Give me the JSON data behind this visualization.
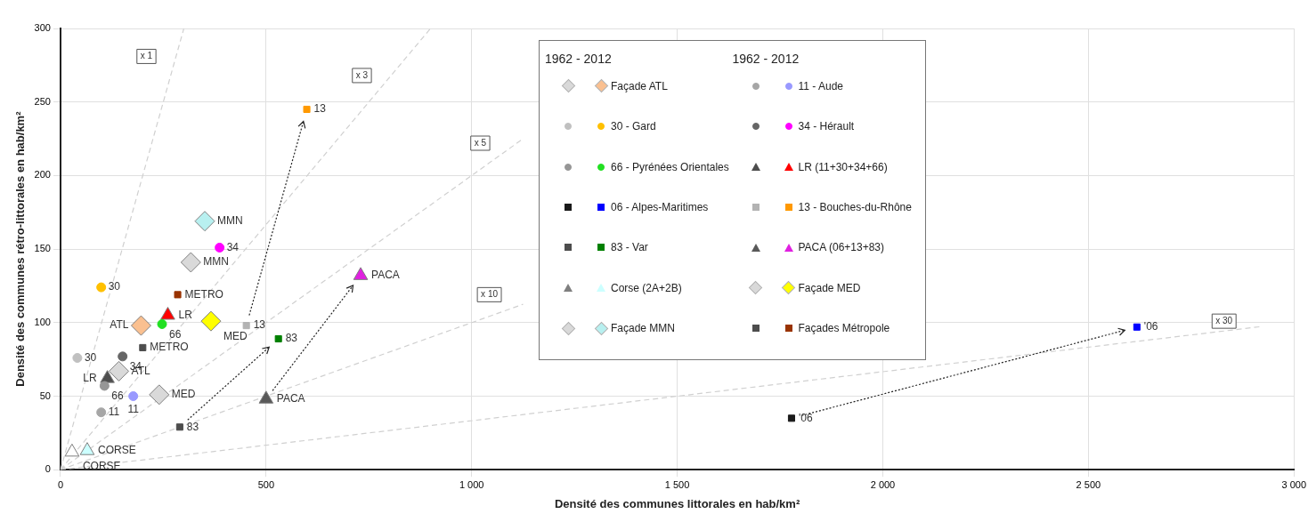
{
  "chart_data": {
    "type": "scatter",
    "xlabel": "Densité des communes littorales en hab/km²",
    "ylabel": "Densité des communes rétro-littorales en hab/km²",
    "legend_title": "1962 - 2012",
    "legend": "top",
    "grid": true,
    "xlim": [
      0,
      3000
    ],
    "xticks": [
      0,
      500,
      {
        "value": 1000,
        "label": "1 000"
      },
      {
        "value": 1500,
        "label": "1 500"
      },
      {
        "value": 2000,
        "label": "2 000"
      },
      {
        "value": 2500,
        "label": "2 500"
      },
      {
        "value": 3000,
        "label": "3 000"
      }
    ],
    "ylim": [
      0,
      300
    ],
    "yticks": [
      0,
      50,
      100,
      150,
      200,
      250,
      300
    ],
    "annotations": [
      {
        "text": "x 1",
        "x": 209,
        "y": 281
      },
      {
        "text": "x 3",
        "x": 733,
        "y": 268
      },
      {
        "text": "x 5",
        "x": 1021,
        "y": 222
      },
      {
        "text": "x 10",
        "x": 1043,
        "y": 119
      },
      {
        "text": "x 30",
        "x": 2830,
        "y": 101
      },
      {
        "text": "MMN",
        "x": 351,
        "y": 169
      },
      {
        "text": "34",
        "x": 387,
        "y": 151
      },
      {
        "text": "MMN",
        "x": 317,
        "y": 141
      },
      {
        "text": "30",
        "x": 99,
        "y": 124
      },
      {
        "text": "METRO",
        "x": 285,
        "y": 119
      },
      {
        "text": "LR",
        "x": 261,
        "y": 105
      },
      {
        "text": "ATL",
        "x": 196,
        "y": 98
      },
      {
        "text": "66",
        "x": 247,
        "y": 99
      },
      {
        "text": "MED",
        "x": 366,
        "y": 101
      },
      {
        "text": "13",
        "x": 452,
        "y": 98
      },
      {
        "text": "METRO",
        "x": 200,
        "y": 83
      },
      {
        "text": "30",
        "x": 41,
        "y": 76
      },
      {
        "text": "34",
        "x": 151,
        "y": 77
      },
      {
        "text": "ATL",
        "x": 142,
        "y": 67
      },
      {
        "text": "LR",
        "x": 114,
        "y": 62
      },
      {
        "text": "66",
        "x": 107,
        "y": 57
      },
      {
        "text": "11",
        "x": 177,
        "y": 50
      },
      {
        "text": "MED",
        "x": 240,
        "y": 51
      },
      {
        "text": "11",
        "x": 99,
        "y": 39
      },
      {
        "text": "83",
        "x": 290,
        "y": 29
      },
      {
        "text": "CORSE",
        "x": 28,
        "y": 12
      },
      {
        "text": "CORSE",
        "x": 65,
        "y": 13
      },
      {
        "text": "13",
        "x": 599,
        "y": 245
      },
      {
        "text": "83",
        "x": 530,
        "y": 89
      },
      {
        "text": "PACA",
        "x": 730,
        "y": 132
      },
      {
        "text": "PACA",
        "x": 500,
        "y": 48
      },
      {
        "text": "'06",
        "x": 1778,
        "y": 35
      },
      {
        "text": "'06",
        "x": 2618,
        "y": 97
      }
    ],
    "series": [
      {
        "color": "#d9d9d9",
        "marker": "diamond",
        "x": [
          142
        ],
        "values": [
          67
        ]
      },
      {
        "name": "Façade ATL",
        "color": "#fac090",
        "marker": "diamond",
        "x": [
          196
        ],
        "values": [
          98
        ]
      },
      {
        "color": "#c0c0c0",
        "marker": "circle",
        "x": [
          41
        ],
        "values": [
          76
        ]
      },
      {
        "name": "30 - Gard",
        "color": "#ffc000",
        "marker": "circle",
        "x": [
          99
        ],
        "values": [
          124
        ]
      },
      {
        "color": "#969696",
        "marker": "circle",
        "x": [
          107
        ],
        "values": [
          57
        ]
      },
      {
        "name": "66 - Pyrénées Orientales",
        "color": "#22e022",
        "marker": "circle",
        "x": [
          247
        ],
        "values": [
          99
        ]
      },
      {
        "color": "#1a1a1a",
        "marker": "square",
        "x": [
          1778
        ],
        "values": [
          35
        ]
      },
      {
        "name": "06 - Alpes-Maritimes",
        "color": "#0000ff",
        "marker": "square",
        "x": [
          2618
        ],
        "values": [
          97
        ]
      },
      {
        "color": "#4d4d4d",
        "marker": "square",
        "x": [
          290
        ],
        "values": [
          29
        ]
      },
      {
        "name": "83 - Var",
        "color": "#008000",
        "marker": "square",
        "x": [
          530
        ],
        "values": [
          89
        ]
      },
      {
        "color": "#ffffff",
        "marker": "triangle",
        "x": [
          28
        ],
        "values": [
          12
        ]
      },
      {
        "name": "Corse (2A+2B)",
        "color": "#ccffff",
        "marker": "triangle",
        "x": [
          65
        ],
        "values": [
          13
        ]
      },
      {
        "color": "#d9d9d9",
        "marker": "diamond",
        "x": [
          317
        ],
        "values": [
          141
        ]
      },
      {
        "name": "Façade MMN",
        "color": "#b8f0f0",
        "marker": "diamond",
        "x": [
          351
        ],
        "values": [
          169
        ]
      },
      {
        "color": "#a6a6a6",
        "marker": "circle",
        "x": [
          99
        ],
        "values": [
          39
        ]
      },
      {
        "name": "11 - Aude",
        "color": "#9999ff",
        "marker": "circle",
        "x": [
          177
        ],
        "values": [
          50
        ]
      },
      {
        "color": "#666666",
        "marker": "circle",
        "x": [
          151
        ],
        "values": [
          77
        ]
      },
      {
        "name": "34 - Hérault",
        "color": "#ff00ff",
        "marker": "circle",
        "x": [
          387
        ],
        "values": [
          151
        ]
      },
      {
        "color": "#4d4d4d",
        "marker": "triangle",
        "x": [
          114
        ],
        "values": [
          62
        ]
      },
      {
        "name": "LR (11+30+34+66)",
        "color": "#ff0000",
        "marker": "triangle",
        "x": [
          261
        ],
        "values": [
          105
        ]
      },
      {
        "color": "#b3b3b3",
        "marker": "square",
        "x": [
          452
        ],
        "values": [
          98
        ]
      },
      {
        "name": "13 - Bouches-du-Rhône",
        "color": "#ff9900",
        "marker": "square",
        "x": [
          599
        ],
        "values": [
          245
        ]
      },
      {
        "color": "#595959",
        "marker": "triangle",
        "x": [
          500
        ],
        "values": [
          48
        ]
      },
      {
        "name": "PACA (06+13+83)",
        "color": "#e020e0",
        "marker": "triangle",
        "x": [
          730
        ],
        "values": [
          132
        ]
      },
      {
        "color": "#d9d9d9",
        "marker": "diamond",
        "x": [
          240
        ],
        "values": [
          51
        ]
      },
      {
        "name": "Façade MED",
        "color": "#ffff00",
        "marker": "diamond",
        "x": [
          366
        ],
        "values": [
          101
        ]
      },
      {
        "color": "#4d4d4d",
        "marker": "square",
        "x": [
          200
        ],
        "values": [
          83
        ]
      },
      {
        "name": "Façades Métropole",
        "color": "#993300",
        "marker": "square",
        "x": [
          285
        ],
        "values": [
          119
        ]
      },
      {
        "type": "line",
        "color": "#d0d0d0",
        "line_style": "dashed",
        "x": [
          0,
          300
        ],
        "values": [
          0,
          300
        ]
      },
      {
        "type": "line",
        "color": "#d0d0d0",
        "line_style": "dashed",
        "x": [
          0,
          900
        ],
        "values": [
          0,
          300
        ]
      },
      {
        "type": "line",
        "color": "#d0d0d0",
        "line_style": "dashed",
        "x": [
          0,
          1125
        ],
        "values": [
          0,
          225
        ]
      },
      {
        "type": "line",
        "color": "#d0d0d0",
        "line_style": "dashed",
        "x": [
          0,
          1125
        ],
        "values": [
          0,
          112.5
        ]
      },
      {
        "type": "line",
        "color": "#d0d0d0",
        "line_style": "dashed",
        "x": [
          0,
          2920
        ],
        "values": [
          0,
          97.3
        ]
      }
    ]
  }
}
